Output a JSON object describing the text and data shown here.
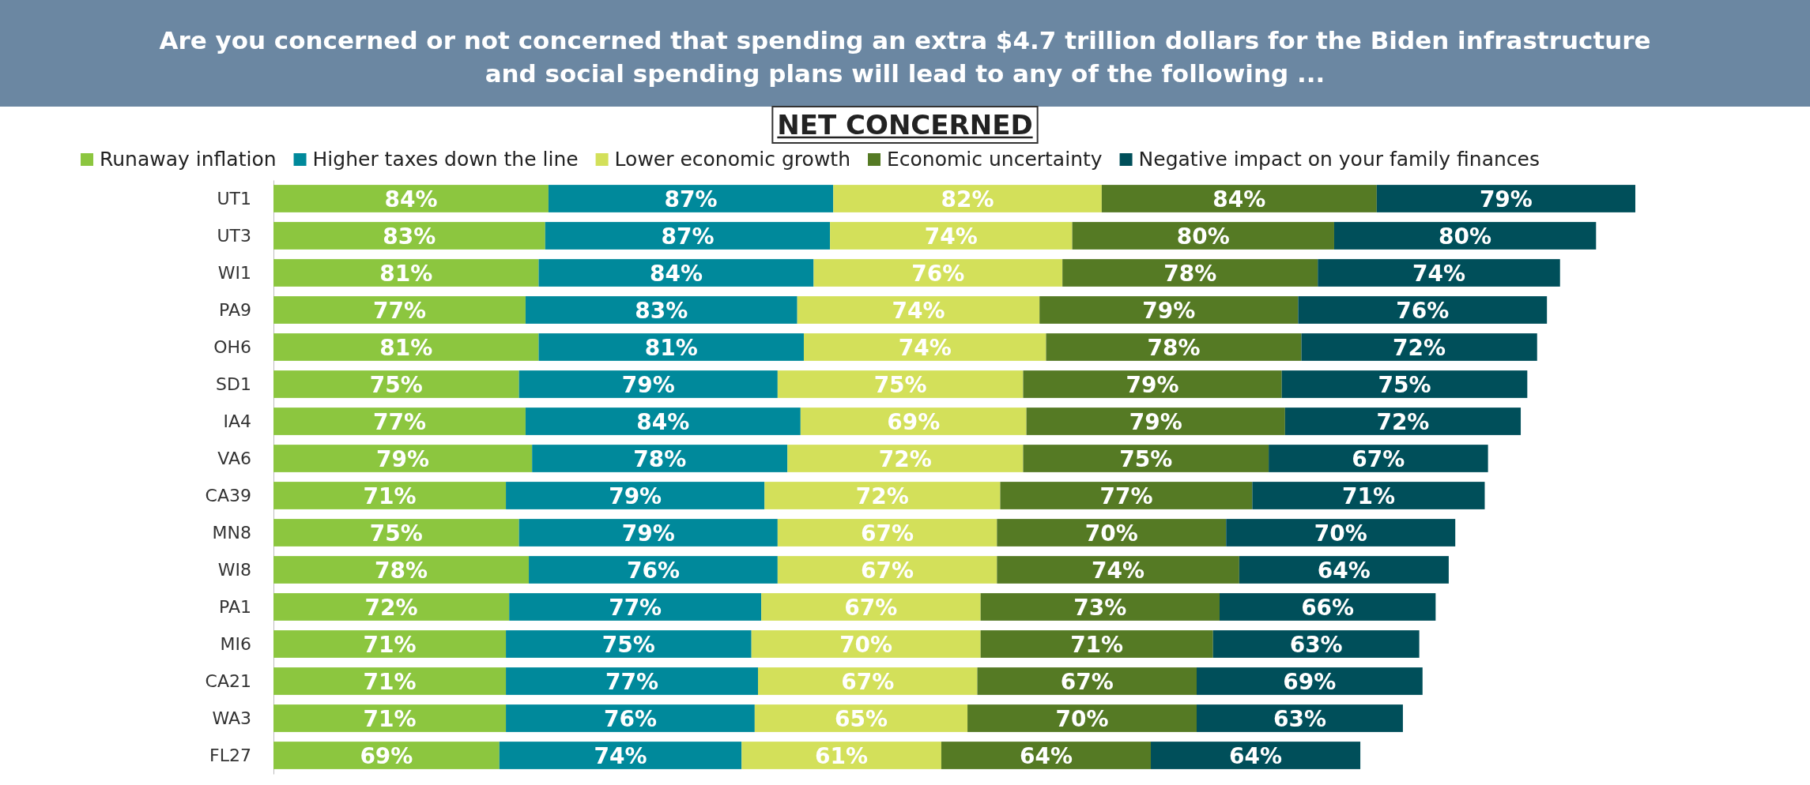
{
  "chart_data": {
    "type": "bar",
    "orientation": "horizontal",
    "stacked": true,
    "title": "Are you concerned or not concerned that spending an extra $4.7 trillion dollars for the Biden infrastructure and social spending plans will lead to any of the following ...",
    "subtitle": "NET CONCERNED",
    "categories": [
      "UT1",
      "UT3",
      "WI1",
      "PA9",
      "OH6",
      "SD1",
      "IA4",
      "VA6",
      "CA39",
      "MN8",
      "WI8",
      "PA1",
      "MI6",
      "CA21",
      "WA3",
      "FL27"
    ],
    "legend": "top",
    "series": [
      {
        "name": "Runaway inflation",
        "color": "#8cc63f",
        "values": [
          84,
          83,
          81,
          77,
          81,
          75,
          77,
          79,
          71,
          75,
          78,
          72,
          71,
          71,
          71,
          69
        ],
        "value_labels": [
          "84%",
          "83%",
          "81%",
          "77%",
          "81%",
          "75%",
          "77%",
          "79%",
          "71%",
          "75%",
          "78%",
          "72%",
          "71%",
          "71%",
          "71%",
          "69%"
        ]
      },
      {
        "name": "Higher taxes down the line",
        "color": "#00899b",
        "values": [
          87,
          87,
          84,
          83,
          81,
          79,
          84,
          78,
          79,
          79,
          76,
          77,
          75,
          77,
          76,
          74
        ],
        "value_labels": [
          "87%",
          "87%",
          "84%",
          "83%",
          "81%",
          "79%",
          "84%",
          "78%",
          "79%",
          "79%",
          "76%",
          "77%",
          "75%",
          "77%",
          "76%",
          "74%"
        ]
      },
      {
        "name": "Lower economic growth",
        "color": "#d3e05a",
        "values": [
          82,
          74,
          76,
          74,
          74,
          75,
          69,
          72,
          72,
          67,
          67,
          67,
          70,
          67,
          65,
          61
        ],
        "value_labels": [
          "82%",
          "74%",
          "76%",
          "74%",
          "74%",
          "75%",
          "69%",
          "72%",
          "72%",
          "67%",
          "67%",
          "67%",
          "70%",
          "67%",
          "65%",
          "61%"
        ]
      },
      {
        "name": "Economic uncertainty",
        "color": "#557a24",
        "values": [
          84,
          80,
          78,
          79,
          78,
          79,
          79,
          75,
          77,
          70,
          74,
          73,
          71,
          67,
          70,
          64
        ],
        "value_labels": [
          "84%",
          "80%",
          "78%",
          "79%",
          "78%",
          "79%",
          "79%",
          "75%",
          "77%",
          "70%",
          "74%",
          "73%",
          "71%",
          "67%",
          "70%",
          "64%"
        ]
      },
      {
        "name": "Negative impact on your family finances",
        "color": "#004f5a",
        "values": [
          79,
          80,
          74,
          76,
          72,
          75,
          72,
          67,
          71,
          70,
          64,
          66,
          63,
          69,
          63,
          64
        ],
        "value_labels": [
          "79%",
          "80%",
          "74%",
          "76%",
          "72%",
          "75%",
          "72%",
          "67%",
          "71%",
          "70%",
          "64%",
          "66%",
          "63%",
          "69%",
          "63%",
          "64%"
        ]
      }
    ]
  }
}
